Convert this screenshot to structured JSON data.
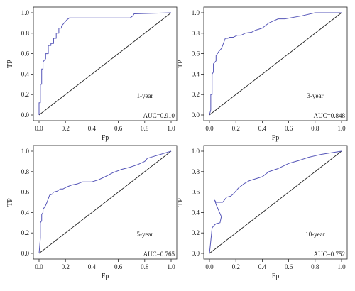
{
  "chart_data": [
    {
      "type": "line",
      "xlabel": "Fp",
      "ylabel": "TP",
      "xlim": [
        0,
        1
      ],
      "ylim": [
        0,
        1
      ],
      "xticks": [
        "0.0",
        "0.2",
        "0.4",
        "0.6",
        "0.8",
        "1.0"
      ],
      "yticks": [
        "0.0",
        "0.2",
        "0.4",
        "0.6",
        "0.8",
        "1.0"
      ],
      "label": "1-year",
      "auc_text": "AUC=0.910",
      "series": [
        {
          "x": [
            0,
            0,
            0.01,
            0.01,
            0.02,
            0.02,
            0.03,
            0.03,
            0.05,
            0.05,
            0.07,
            0.07,
            0.09,
            0.09,
            0.11,
            0.11,
            0.13,
            0.13,
            0.15,
            0.15,
            0.17,
            0.17,
            0.19,
            0.21,
            0.23,
            0.25,
            0.5,
            0.69,
            0.71,
            0.72,
            1.0
          ],
          "y": [
            0,
            0.12,
            0.12,
            0.3,
            0.3,
            0.45,
            0.45,
            0.52,
            0.55,
            0.6,
            0.6,
            0.68,
            0.68,
            0.7,
            0.7,
            0.75,
            0.75,
            0.8,
            0.8,
            0.85,
            0.85,
            0.87,
            0.9,
            0.93,
            0.95,
            0.95,
            0.95,
            0.95,
            0.97,
            0.99,
            1.0
          ]
        },
        {
          "x": [
            0,
            1
          ],
          "y": [
            0,
            1
          ]
        }
      ],
      "colors": {
        "roc": "#5555b8",
        "reference": "#222222"
      }
    },
    {
      "type": "line",
      "xlabel": "Fp",
      "ylabel": "TP",
      "xlim": [
        0,
        1
      ],
      "ylim": [
        0,
        1
      ],
      "xticks": [
        "0.0",
        "0.2",
        "0.4",
        "0.6",
        "0.8",
        "1.0"
      ],
      "yticks": [
        "0.0",
        "0.2",
        "0.4",
        "0.6",
        "0.8",
        "1.0"
      ],
      "label": "3-year",
      "auc_text": "AUC=0.848",
      "series": [
        {
          "x": [
            0,
            0.01,
            0.01,
            0.02,
            0.02,
            0.03,
            0.03,
            0.05,
            0.05,
            0.07,
            0.09,
            0.1,
            0.12,
            0.14,
            0.15,
            0.18,
            0.21,
            0.24,
            0.27,
            0.32,
            0.35,
            0.4,
            0.45,
            0.52,
            0.57,
            0.7,
            0.8,
            1.0
          ],
          "y": [
            0,
            0.05,
            0.2,
            0.2,
            0.4,
            0.42,
            0.5,
            0.53,
            0.58,
            0.62,
            0.65,
            0.68,
            0.75,
            0.75,
            0.76,
            0.76,
            0.78,
            0.78,
            0.8,
            0.81,
            0.83,
            0.85,
            0.9,
            0.94,
            0.94,
            0.97,
            1.0,
            1.0
          ]
        },
        {
          "x": [
            0,
            1
          ],
          "y": [
            0,
            1
          ]
        }
      ],
      "colors": {
        "roc": "#5555b8",
        "reference": "#222222"
      }
    },
    {
      "type": "line",
      "xlabel": "Fp",
      "ylabel": "TP",
      "xlim": [
        0,
        1
      ],
      "ylim": [
        0,
        1
      ],
      "xticks": [
        "0.0",
        "0.2",
        "0.4",
        "0.6",
        "0.8",
        "1.0"
      ],
      "yticks": [
        "0.0",
        "0.2",
        "0.4",
        "0.6",
        "0.8",
        "1.0"
      ],
      "label": "5-year",
      "auc_text": "AUC=0.765",
      "series": [
        {
          "x": [
            0,
            0.01,
            0.01,
            0.02,
            0.02,
            0.03,
            0.03,
            0.05,
            0.06,
            0.08,
            0.1,
            0.11,
            0.14,
            0.16,
            0.18,
            0.21,
            0.25,
            0.29,
            0.33,
            0.4,
            0.45,
            0.5,
            0.56,
            0.62,
            0.68,
            0.75,
            0.8,
            0.82,
            1.0
          ],
          "y": [
            0,
            0.15,
            0.3,
            0.32,
            0.38,
            0.4,
            0.43,
            0.47,
            0.5,
            0.57,
            0.58,
            0.6,
            0.61,
            0.63,
            0.63,
            0.65,
            0.67,
            0.68,
            0.7,
            0.7,
            0.72,
            0.75,
            0.79,
            0.82,
            0.84,
            0.87,
            0.9,
            0.93,
            1.0
          ]
        },
        {
          "x": [
            0,
            1
          ],
          "y": [
            0,
            1
          ]
        }
      ],
      "colors": {
        "roc": "#5555b8",
        "reference": "#222222"
      }
    },
    {
      "type": "line",
      "xlabel": "Fp",
      "ylabel": "TP",
      "xlim": [
        0,
        1
      ],
      "ylim": [
        0,
        1
      ],
      "xticks": [
        "0.0",
        "0.2",
        "0.4",
        "0.6",
        "0.8",
        "1.0"
      ],
      "yticks": [
        "0.0",
        "0.2",
        "0.4",
        "0.6",
        "0.8",
        "1.0"
      ],
      "label": "10-year",
      "auc_text": "AUC=0.752",
      "series": [
        {
          "x": [
            0,
            0.01,
            0.02,
            0.04,
            0.05,
            0.08,
            0.09,
            0.07,
            0.05,
            0.04,
            0.05,
            0.1,
            0.13,
            0.16,
            0.18,
            0.22,
            0.26,
            0.3,
            0.35,
            0.4,
            0.45,
            0.52,
            0.6,
            0.68,
            0.75,
            0.85,
            1.0
          ],
          "y": [
            0,
            0.12,
            0.25,
            0.28,
            0.29,
            0.3,
            0.36,
            0.42,
            0.48,
            0.52,
            0.5,
            0.5,
            0.55,
            0.56,
            0.58,
            0.64,
            0.68,
            0.71,
            0.73,
            0.75,
            0.8,
            0.83,
            0.88,
            0.91,
            0.94,
            0.97,
            1.0
          ]
        },
        {
          "x": [
            0,
            1
          ],
          "y": [
            0,
            1
          ]
        }
      ],
      "colors": {
        "roc": "#5555b8",
        "reference": "#222222"
      }
    }
  ]
}
